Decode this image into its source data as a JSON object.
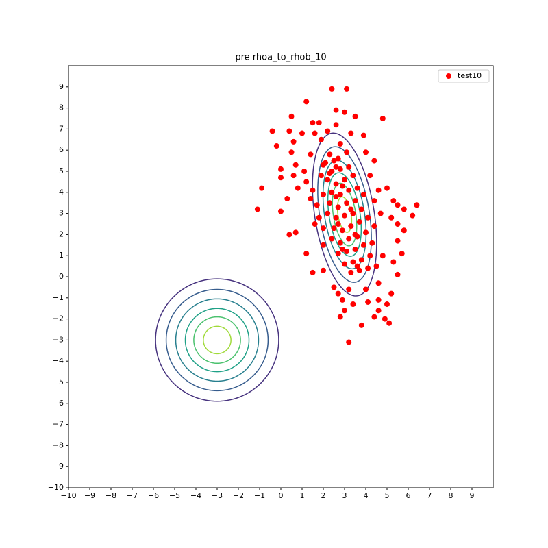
{
  "chart_data": {
    "type": "scatter",
    "title": "pre rhoa_to_rhob_10",
    "xlim": [
      -10,
      10
    ],
    "ylim": [
      -10,
      10
    ],
    "xticks": [
      {
        "value": -10,
        "label": "−10"
      },
      {
        "value": -9,
        "label": "−9"
      },
      {
        "value": -8,
        "label": "−8"
      },
      {
        "value": -7,
        "label": "−7"
      },
      {
        "value": -6,
        "label": "−6"
      },
      {
        "value": -5,
        "label": "−5"
      },
      {
        "value": -4,
        "label": "−4"
      },
      {
        "value": -3,
        "label": "−3"
      },
      {
        "value": -2,
        "label": "−2"
      },
      {
        "value": -1,
        "label": "−1"
      },
      0,
      1,
      2,
      3,
      4,
      5,
      6,
      7,
      8,
      9
    ],
    "yticks": [
      {
        "value": -10,
        "label": "−10"
      },
      {
        "value": -9,
        "label": "−9"
      },
      {
        "value": -8,
        "label": "−8"
      },
      {
        "value": -7,
        "label": "−7"
      },
      {
        "value": -6,
        "label": "−6"
      },
      {
        "value": -5,
        "label": "−5"
      },
      {
        "value": -4,
        "label": "−4"
      },
      {
        "value": -3,
        "label": "−3"
      },
      {
        "value": -2,
        "label": "−2"
      },
      {
        "value": -1,
        "label": "−1"
      },
      0,
      1,
      2,
      3,
      4,
      5,
      6,
      7,
      8,
      9
    ],
    "legend": "upper right",
    "series": [
      {
        "name": "test10",
        "color": "#ff0000",
        "x": [
          2.4,
          3.1,
          1.2,
          2.6,
          3.0,
          3.5,
          0.5,
          4.8,
          1.5,
          1.8,
          2.6,
          -0.4,
          0.4,
          1.0,
          1.6,
          2.2,
          3.3,
          3.9,
          -0.2,
          0.6,
          1.9,
          2.8,
          4.0,
          0.5,
          1.4,
          4.4,
          0.0,
          0.7,
          1.1,
          2.0,
          0.0,
          0.6,
          1.2,
          4.2,
          -0.9,
          0.8,
          1.5,
          4.6,
          5.0,
          -1.1,
          0.0,
          0.3,
          1.4,
          4.4,
          5.3,
          5.5,
          6.4,
          5.8,
          6.2,
          0.4,
          0.7,
          1.6,
          5.2,
          5.5,
          5.8,
          5.5,
          1.2,
          5.7,
          1.5,
          2.0,
          5.3,
          5.5,
          2.5,
          2.7,
          3.2,
          4.0,
          5.2,
          2.9,
          3.4,
          4.1,
          4.6,
          5.0,
          3.0,
          4.6,
          2.8,
          4.4,
          3.8,
          4.9,
          5.1,
          3.2,
          2.3,
          2.5,
          2.1,
          2.7,
          3.1,
          2.4,
          2.8,
          3.2,
          1.9,
          2.2,
          2.6,
          3.0,
          3.4,
          2.4,
          2.8,
          3.2,
          3.6,
          2.0,
          2.3,
          2.7,
          3.1,
          3.5,
          3.9,
          2.2,
          2.6,
          3.0,
          3.4,
          3.8,
          2.5,
          2.9,
          3.3,
          3.7,
          4.1,
          2.4,
          2.8,
          3.2,
          3.6,
          4.0,
          2.7,
          3.1,
          3.5,
          3.9,
          4.3,
          3.0,
          3.4,
          3.8,
          4.2,
          3.3,
          3.7,
          4.1,
          4.5,
          2.6,
          2.9,
          3.3,
          2.7,
          3.5,
          2.9,
          3.6,
          2.3,
          2.6,
          4.4,
          4.7,
          1.8,
          2.0,
          4.8,
          4.6,
          2.0,
          1.7
        ],
        "y": [
          8.9,
          8.9,
          8.3,
          7.9,
          7.8,
          7.6,
          7.6,
          7.5,
          7.3,
          7.3,
          7.2,
          6.9,
          6.9,
          6.8,
          6.8,
          6.9,
          6.8,
          6.7,
          6.2,
          6.4,
          6.5,
          6.3,
          5.9,
          5.9,
          5.8,
          5.5,
          5.1,
          5.3,
          5.0,
          5.3,
          4.7,
          4.8,
          4.5,
          4.8,
          4.2,
          4.2,
          4.1,
          4.1,
          4.2,
          3.2,
          3.1,
          3.7,
          3.7,
          3.6,
          3.6,
          3.4,
          3.4,
          3.2,
          2.9,
          2.0,
          2.1,
          2.5,
          2.8,
          2.5,
          2.2,
          1.7,
          1.1,
          1.1,
          0.2,
          0.3,
          0.7,
          0.1,
          -0.5,
          -0.8,
          -0.6,
          -0.6,
          -0.8,
          -1.1,
          -1.3,
          -1.2,
          -1.1,
          -1.3,
          -1.6,
          -1.6,
          -1.9,
          -1.9,
          -2.3,
          -2.0,
          -2.2,
          -3.1,
          5.8,
          5.5,
          5.4,
          5.6,
          5.9,
          5.0,
          5.1,
          5.2,
          4.8,
          4.6,
          4.4,
          4.6,
          4.8,
          4.0,
          3.9,
          4.1,
          4.2,
          3.9,
          3.5,
          3.3,
          3.5,
          3.6,
          3.9,
          3.0,
          2.8,
          2.9,
          3.0,
          3.2,
          2.3,
          2.2,
          2.4,
          2.6,
          2.8,
          1.8,
          1.6,
          1.8,
          1.9,
          2.1,
          1.1,
          1.2,
          1.3,
          1.5,
          1.6,
          0.6,
          0.7,
          0.8,
          1.0,
          0.2,
          0.3,
          0.4,
          0.5,
          3.8,
          4.3,
          3.2,
          2.5,
          2.0,
          1.3,
          0.5,
          4.9,
          5.2,
          2.4,
          3.0,
          2.8,
          2.3,
          1.0,
          -0.3,
          1.5,
          3.4
        ]
      }
    ],
    "contours": [
      {
        "cx": -3,
        "cy": -3,
        "rx": 2.9,
        "ry": 2.9,
        "angle": 0,
        "color": "#46327e"
      },
      {
        "cx": -3,
        "cy": -3,
        "rx": 2.4,
        "ry": 2.4,
        "angle": 0,
        "color": "#365c8d"
      },
      {
        "cx": -3,
        "cy": -3,
        "rx": 1.95,
        "ry": 1.95,
        "angle": 0,
        "color": "#277f8e"
      },
      {
        "cx": -3,
        "cy": -3,
        "rx": 1.5,
        "ry": 1.5,
        "angle": 0,
        "color": "#1fa187"
      },
      {
        "cx": -3,
        "cy": -3,
        "rx": 1.1,
        "ry": 1.1,
        "angle": 0,
        "color": "#4ac16d"
      },
      {
        "cx": -3,
        "cy": -3,
        "rx": 0.65,
        "ry": 0.65,
        "angle": 0,
        "color": "#a0da39"
      },
      {
        "cx": 3,
        "cy": 2.95,
        "rx": 3.9,
        "ry": 1.4,
        "angle": -81,
        "color": "#46327e"
      },
      {
        "cx": 3,
        "cy": 2.95,
        "rx": 3.25,
        "ry": 1.17,
        "angle": -81,
        "color": "#365c8d"
      },
      {
        "cx": 3,
        "cy": 2.95,
        "rx": 2.6,
        "ry": 0.94,
        "angle": -81,
        "color": "#277f8e"
      },
      {
        "cx": 3,
        "cy": 2.95,
        "rx": 2.0,
        "ry": 0.73,
        "angle": -81,
        "color": "#1fa187"
      },
      {
        "cx": 3,
        "cy": 2.95,
        "rx": 1.5,
        "ry": 0.53,
        "angle": -81,
        "color": "#4ac16d"
      },
      {
        "cx": 3,
        "cy": 2.95,
        "rx": 0.85,
        "ry": 0.31,
        "angle": -81,
        "color": "#a0da39"
      }
    ]
  }
}
